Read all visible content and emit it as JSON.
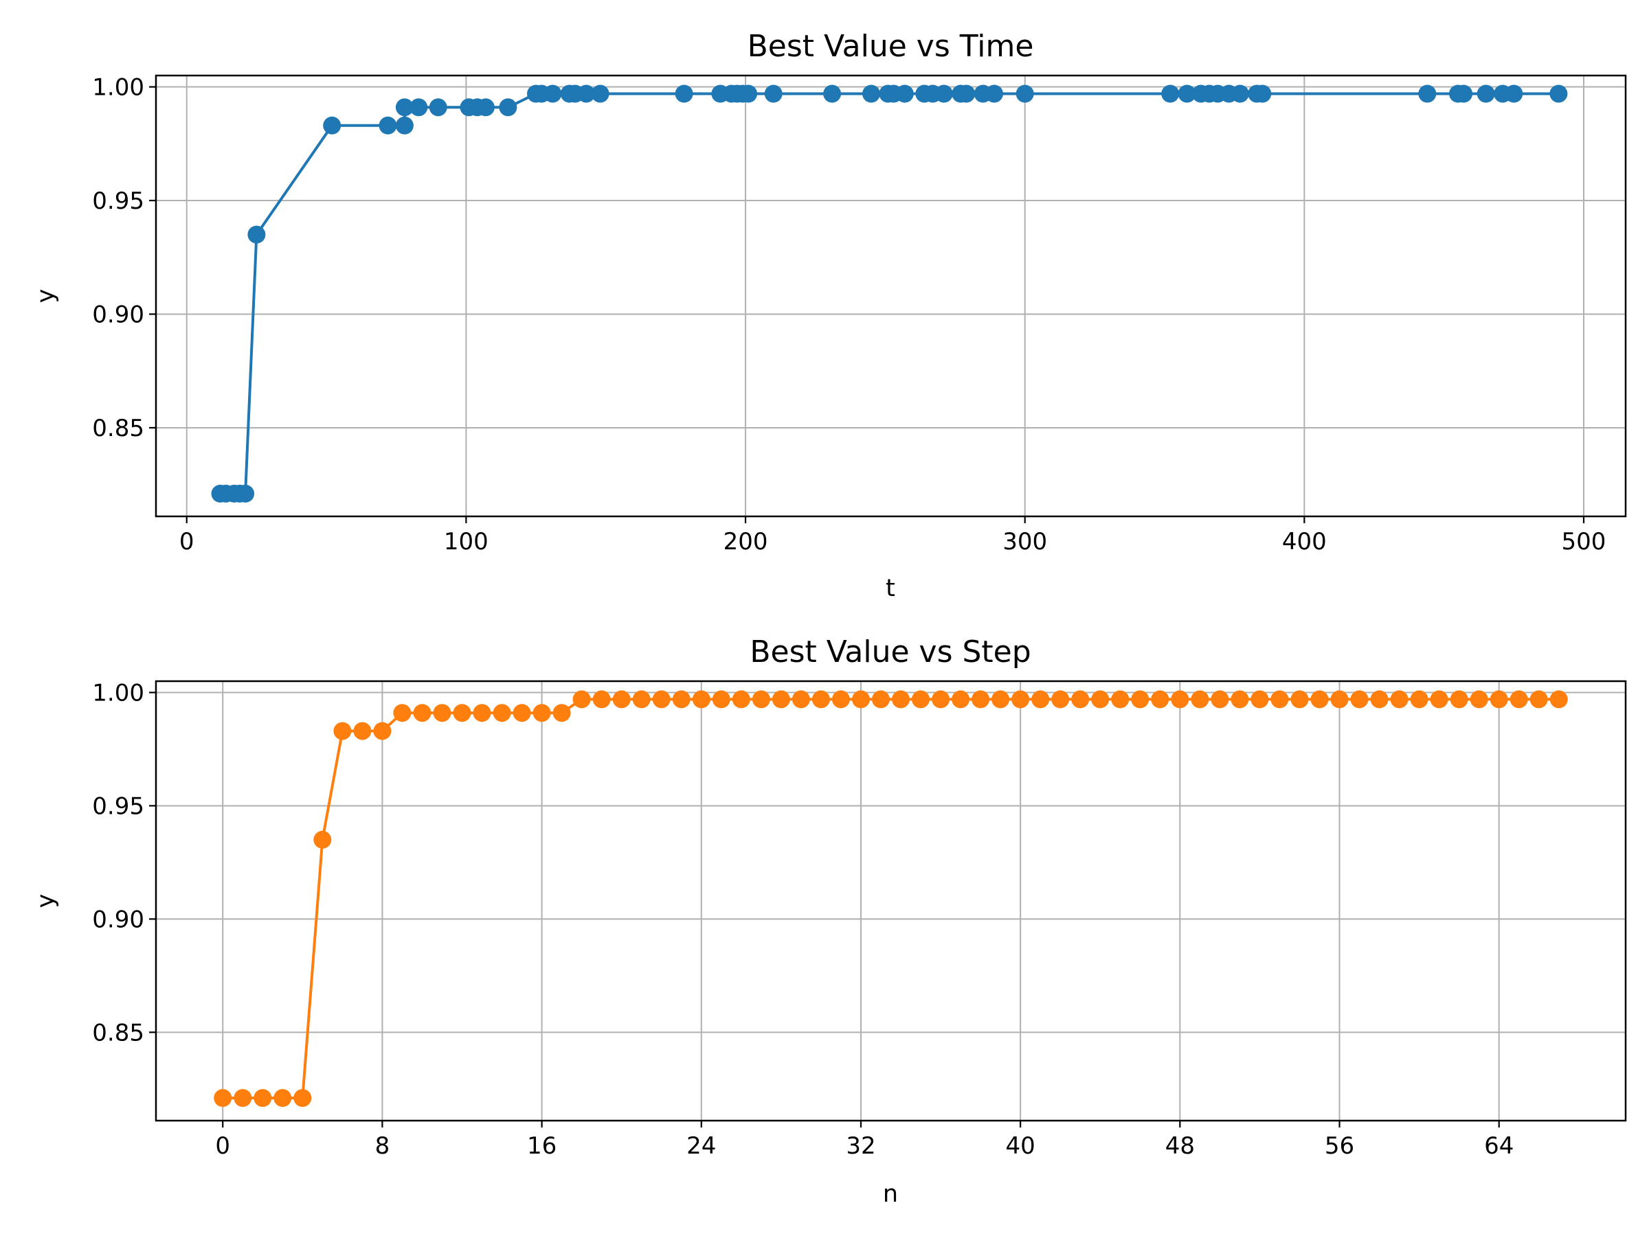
{
  "chart_data": [
    {
      "type": "line",
      "title": "Best Value vs Time",
      "xlabel": "t",
      "ylabel": "y",
      "xlim": [
        -11,
        515
      ],
      "ylim": [
        0.811,
        1.005
      ],
      "xticks": [
        0,
        100,
        200,
        300,
        400,
        500
      ],
      "yticks": [
        0.85,
        0.9,
        0.95,
        1.0
      ],
      "xtick_labels": [
        "0",
        "100",
        "200",
        "300",
        "400",
        "500"
      ],
      "ytick_labels": [
        "0.85",
        "0.90",
        "0.95",
        "1.00"
      ],
      "grid": true,
      "color": "#1f77b4",
      "marker": "circle",
      "series": [
        {
          "x": [
            12,
            14,
            17,
            19,
            21,
            25,
            52,
            72,
            78,
            78,
            83,
            90,
            101,
            104,
            107,
            115,
            125,
            127,
            131,
            137,
            139,
            143,
            148,
            178,
            191,
            195,
            197,
            199,
            201,
            210,
            231,
            245,
            251,
            253,
            257,
            264,
            267,
            271,
            277,
            279,
            285,
            289,
            300,
            352,
            358,
            363,
            366,
            369,
            373,
            377,
            383,
            385,
            444,
            455,
            457,
            465,
            471,
            475,
            491
          ],
          "y": [
            0.821,
            0.821,
            0.821,
            0.821,
            0.821,
            0.935,
            0.983,
            0.983,
            0.983,
            0.991,
            0.991,
            0.991,
            0.991,
            0.991,
            0.991,
            0.991,
            0.997,
            0.997,
            0.997,
            0.997,
            0.997,
            0.997,
            0.997,
            0.997,
            0.997,
            0.997,
            0.997,
            0.997,
            0.997,
            0.997,
            0.997,
            0.997,
            0.997,
            0.997,
            0.997,
            0.997,
            0.997,
            0.997,
            0.997,
            0.997,
            0.997,
            0.997,
            0.997,
            0.997,
            0.997,
            0.997,
            0.997,
            0.997,
            0.997,
            0.997,
            0.997,
            0.997,
            0.997,
            0.997,
            0.997,
            0.997,
            0.997,
            0.997,
            0.997
          ]
        }
      ]
    },
    {
      "type": "line",
      "title": "Best Value vs Step",
      "xlabel": "n",
      "ylabel": "y",
      "xlim": [
        -3.35,
        70.35
      ],
      "ylim": [
        0.811,
        1.005
      ],
      "xticks": [
        0,
        8,
        16,
        24,
        32,
        40,
        48,
        56,
        64
      ],
      "yticks": [
        0.85,
        0.9,
        0.95,
        1.0
      ],
      "xtick_labels": [
        "0",
        "8",
        "16",
        "24",
        "32",
        "40",
        "48",
        "56",
        "64"
      ],
      "ytick_labels": [
        "0.85",
        "0.90",
        "0.95",
        "1.00"
      ],
      "grid": true,
      "color": "#ff7f0e",
      "marker": "circle",
      "series": [
        {
          "x": [
            0,
            1,
            2,
            3,
            4,
            5,
            6,
            7,
            8,
            9,
            10,
            11,
            12,
            13,
            14,
            15,
            16,
            17,
            18,
            19,
            20,
            21,
            22,
            23,
            24,
            25,
            26,
            27,
            28,
            29,
            30,
            31,
            32,
            33,
            34,
            35,
            36,
            37,
            38,
            39,
            40,
            41,
            42,
            43,
            44,
            45,
            46,
            47,
            48,
            49,
            50,
            51,
            52,
            53,
            54,
            55,
            56,
            57,
            58,
            59,
            60,
            61,
            62,
            63,
            64,
            65,
            66,
            67
          ],
          "y": [
            0.821,
            0.821,
            0.821,
            0.821,
            0.821,
            0.935,
            0.983,
            0.983,
            0.983,
            0.991,
            0.991,
            0.991,
            0.991,
            0.991,
            0.991,
            0.991,
            0.991,
            0.991,
            0.997,
            0.997,
            0.997,
            0.997,
            0.997,
            0.997,
            0.997,
            0.997,
            0.997,
            0.997,
            0.997,
            0.997,
            0.997,
            0.997,
            0.997,
            0.997,
            0.997,
            0.997,
            0.997,
            0.997,
            0.997,
            0.997,
            0.997,
            0.997,
            0.997,
            0.997,
            0.997,
            0.997,
            0.997,
            0.997,
            0.997,
            0.997,
            0.997,
            0.997,
            0.997,
            0.997,
            0.997,
            0.997,
            0.997,
            0.997,
            0.997,
            0.997,
            0.997,
            0.997,
            0.997,
            0.997,
            0.997,
            0.997,
            0.997,
            0.997
          ]
        }
      ]
    }
  ]
}
